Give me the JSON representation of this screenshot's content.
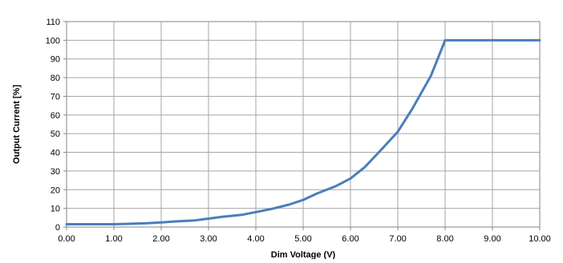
{
  "chart_data": {
    "type": "line",
    "xlabel": "Dim Voltage (V)",
    "ylabel": "Output Current [%]",
    "xlim": [
      0,
      10
    ],
    "ylim": [
      0,
      110
    ],
    "x_ticks": [
      "0.00",
      "1.00",
      "2.00",
      "3.00",
      "4.00",
      "5.00",
      "6.00",
      "7.00",
      "8.00",
      "9.00",
      "10.00"
    ],
    "y_ticks": [
      "0",
      "10",
      "20",
      "30",
      "40",
      "50",
      "60",
      "70",
      "80",
      "90",
      "100",
      "110"
    ],
    "grid": true,
    "series": [
      {
        "color": "#4a7ebb",
        "x": [
          0.0,
          0.5,
          1.0,
          1.3,
          1.7,
          2.0,
          2.3,
          2.7,
          3.0,
          3.3,
          3.7,
          4.0,
          4.3,
          4.7,
          5.0,
          5.3,
          5.7,
          6.0,
          6.3,
          6.6,
          7.0,
          7.3,
          7.7,
          8.0,
          9.0,
          10.0
        ],
        "y": [
          1.5,
          1.5,
          1.5,
          1.7,
          2.0,
          2.5,
          3.0,
          3.5,
          4.5,
          5.5,
          6.5,
          8.0,
          9.5,
          12.0,
          14.5,
          18.0,
          22.0,
          26.0,
          32.0,
          40.0,
          51.0,
          63.0,
          81.0,
          100.0,
          100.0,
          100.0
        ]
      }
    ]
  }
}
